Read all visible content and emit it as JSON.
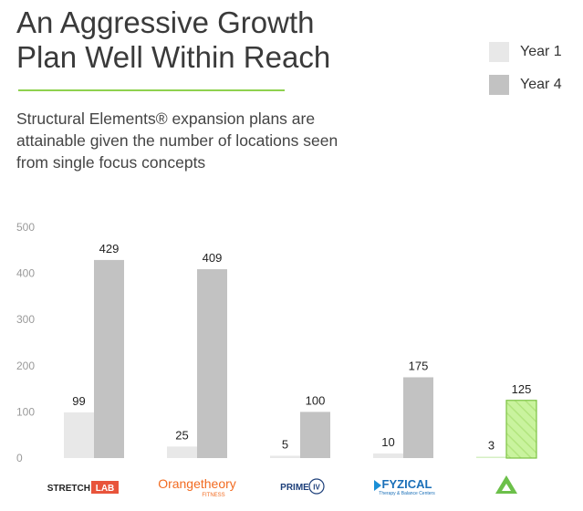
{
  "header": {
    "title_lines": [
      "An Aggressive Growth",
      "Plan Well Within Reach"
    ],
    "subtitle_lines": [
      "Structural Elements® expansion plans are",
      "attainable given the number of locations seen",
      "from single focus concepts"
    ]
  },
  "colors": {
    "year1": "#e8e8e8",
    "year4": "#c2c2c2",
    "highlight_year1": "#d6efc4",
    "highlight_year4": "#c9f39e",
    "highlight_stroke": "#7cc242",
    "accent_green": "#8fd14f"
  },
  "logos": [
    {
      "icon": "stretchlab-logo",
      "parts": [
        "STRETCH",
        "LAB"
      ]
    },
    {
      "icon": "orangetheory-logo",
      "parts": [
        "Orangetheory",
        "FITNESS"
      ]
    },
    {
      "icon": "primeiv-logo",
      "parts": [
        "PRIME",
        "IV"
      ]
    },
    {
      "icon": "fyzical-logo",
      "parts": [
        "FYZICAL",
        "Therapy & Balance Centers"
      ]
    },
    {
      "icon": "structural-elements-logo",
      "parts": []
    }
  ],
  "chart_data": {
    "type": "bar",
    "categories": [
      "StretchLab",
      "Orangetheory Fitness",
      "Prime IV",
      "Fyzical",
      "Structural Elements"
    ],
    "series": [
      {
        "name": "Year 1",
        "values": [
          99,
          25,
          5,
          10,
          3
        ]
      },
      {
        "name": "Year 4",
        "values": [
          429,
          409,
          100,
          175,
          125
        ]
      }
    ],
    "yticks": [
      0,
      100,
      200,
      300,
      400,
      500
    ],
    "ylim": [
      0,
      500
    ],
    "legend": "top-right",
    "highlight_category_index": 4,
    "grid": false
  }
}
